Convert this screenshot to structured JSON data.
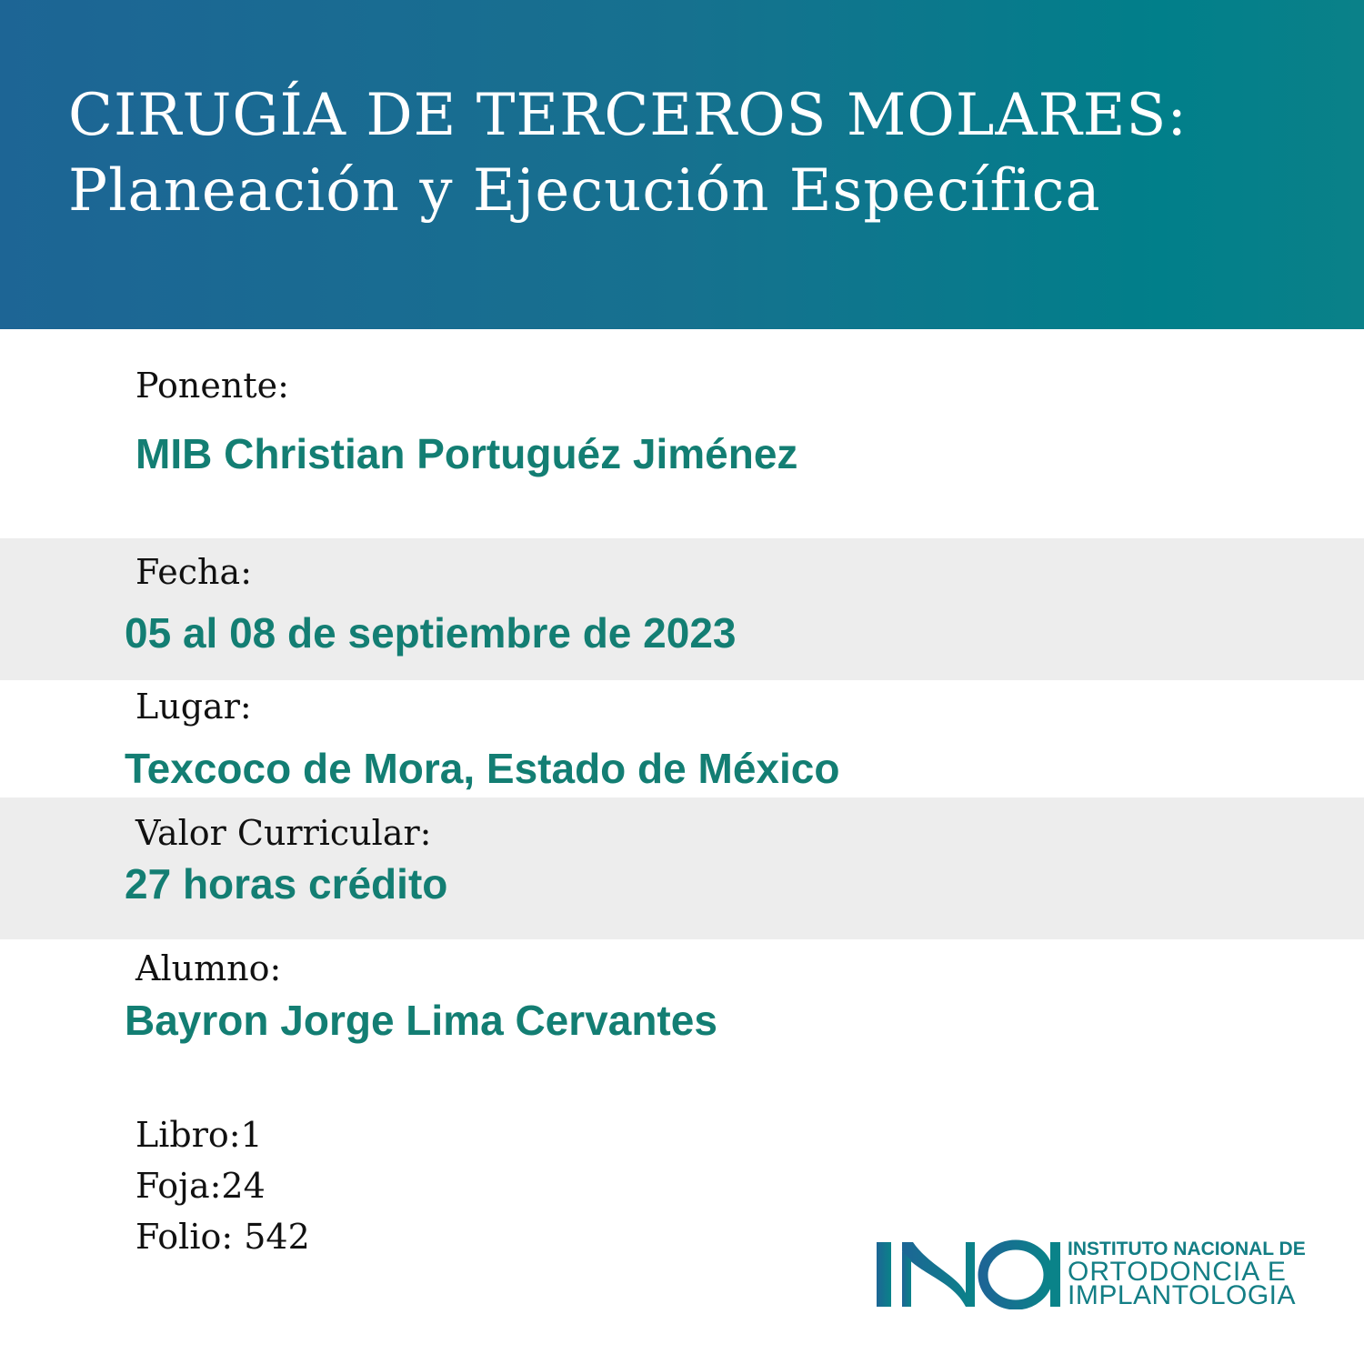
{
  "header": {
    "title_line1": "CIRUGÍA DE TERCEROS MOLARES:",
    "title_line2": "Planeación y Ejecución Específica",
    "gradient_colors": [
      "#1d6595",
      "#017f8a"
    ]
  },
  "fields": {
    "ponente": {
      "label": "Ponente:",
      "value": "MIB Christian Portuguéz Jiménez"
    },
    "fecha": {
      "label": "Fecha:",
      "value": "05 al 08 de septiembre de 2023"
    },
    "lugar": {
      "label": "Lugar:",
      "value": "Texcoco de Mora, Estado de México"
    },
    "valor": {
      "label": "Valor Curricular:",
      "value": "27 horas crédito"
    },
    "alumno": {
      "label": "Alumno:",
      "value": "Bayron Jorge Lima Cervantes"
    }
  },
  "registry": {
    "libro": "Libro:1",
    "foja": "Foja:24",
    "folio": "Folio: 542"
  },
  "logo": {
    "mark": "INOI",
    "line1": "INSTITUTO NACIONAL DE",
    "line2": "ORTODONCIA E",
    "line3": "IMPLANTOLOGIA"
  },
  "colors": {
    "accent": "#137e73",
    "band": "#ededed",
    "label": "#111111"
  }
}
